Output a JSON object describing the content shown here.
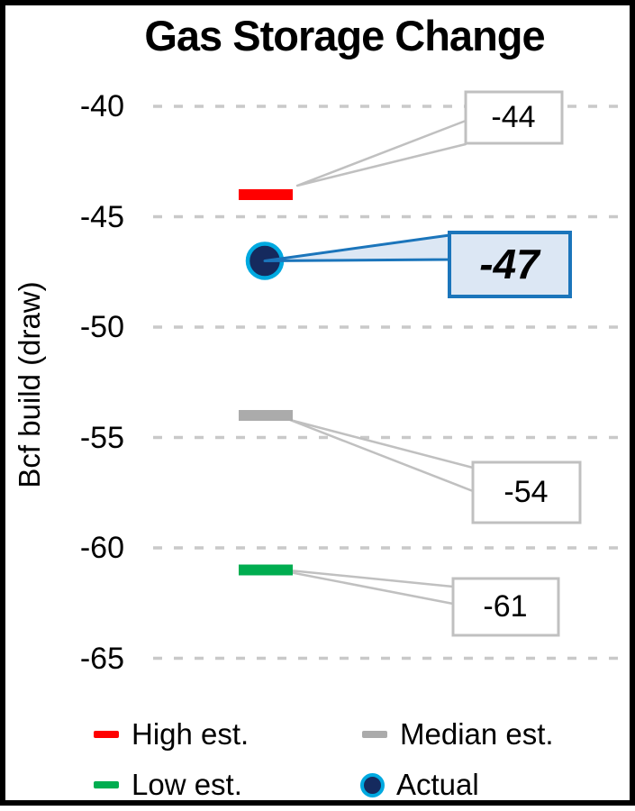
{
  "chart_data": {
    "type": "scatter",
    "title": "Gas Storage Change",
    "ylabel": "Bcf build (draw)",
    "xlabel": "",
    "yticks": [
      -40,
      -45,
      -50,
      -55,
      -60,
      -65
    ],
    "ytick_labels": [
      "-40",
      "-45",
      "-50",
      "-55",
      "-60",
      "-65"
    ],
    "ylim": [
      -66.5,
      -38.5
    ],
    "grid": "horizontal-dashed",
    "legend_position": "bottom",
    "series": [
      {
        "name": "High est.",
        "value": -44,
        "callout_label": "-44",
        "marker": "dash",
        "color": "#FF0000"
      },
      {
        "name": "Actual",
        "value": -47,
        "callout_label": "-47",
        "marker": "circle",
        "color": "#152A5E",
        "ring_color": "#00A9E0",
        "callout_fill": "#DCE7F4",
        "callout_border": "#1B75BB"
      },
      {
        "name": "Median est.",
        "value": -54,
        "callout_label": "-54",
        "marker": "dash",
        "color": "#ABABAB"
      },
      {
        "name": "Low est.",
        "value": -61,
        "callout_label": "-61",
        "marker": "dash",
        "color": "#00AD50"
      }
    ]
  },
  "legend": {
    "items": [
      {
        "label": "High est.",
        "marker": "dash",
        "color": "#FF0000"
      },
      {
        "label": "Median est.",
        "marker": "dash",
        "color": "#ABABAB"
      },
      {
        "label": "Low est.",
        "marker": "dash",
        "color": "#00AD50"
      },
      {
        "label": "Actual",
        "marker": "circle",
        "color": "#152A5E",
        "ring_color": "#00A9E0"
      }
    ]
  },
  "colors": {
    "gridline": "#C9C9C9",
    "callout_leader": "#C0C0C0",
    "callout_fill": "#FFFFFF",
    "frame": "#000000"
  }
}
